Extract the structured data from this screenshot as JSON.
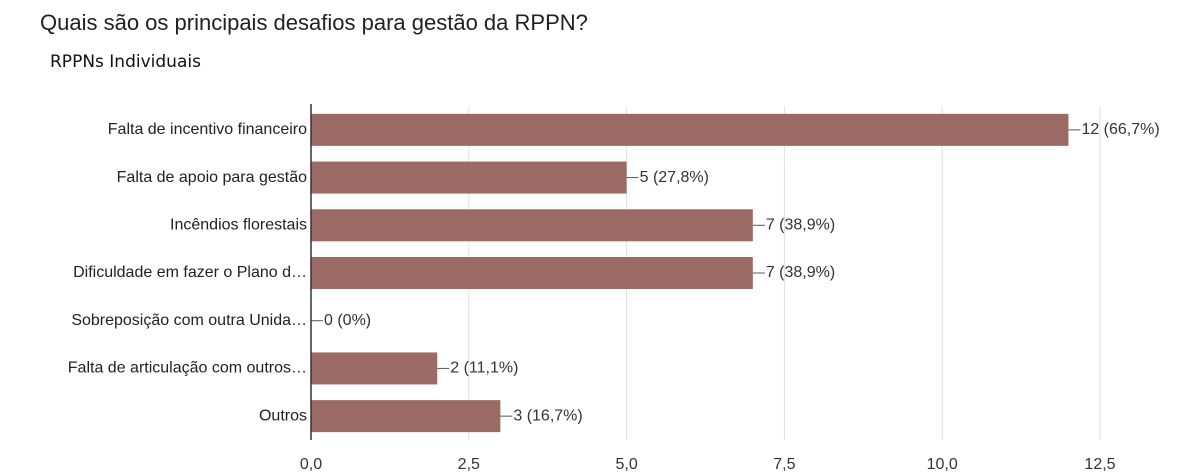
{
  "chart_data": {
    "type": "bar",
    "orientation": "horizontal",
    "title": "Quais são os principais desafios para gestão da RPPN?",
    "subtitle": "RPPNs Individuais",
    "categories": [
      "Falta de incentivo financeiro",
      "Falta de apoio para gestão",
      "Incêndios florestais",
      "Dificuldade em fazer o Plano d…",
      "Sobreposição com outra Unida…",
      "Falta de articulação com outros…",
      "Outros"
    ],
    "values": [
      12,
      5,
      7,
      7,
      0,
      2,
      3
    ],
    "value_labels": [
      "12 (66,7%)",
      "5 (27,8%)",
      "7 (38,9%)",
      "7 (38,9%)",
      "0 (0%)",
      "2 (11,1%)",
      "3 (16,7%)"
    ],
    "color": "#9c6a64",
    "xlim": [
      0,
      12.5
    ],
    "xticks": [
      {
        "value": 0,
        "label": "0,0"
      },
      {
        "value": 2.5,
        "label": "2,5"
      },
      {
        "value": 5,
        "label": "5,0"
      },
      {
        "value": 7.5,
        "label": "7,5"
      },
      {
        "value": 10,
        "label": "10,0"
      },
      {
        "value": 12.5,
        "label": "12,5"
      }
    ],
    "grid": true
  }
}
